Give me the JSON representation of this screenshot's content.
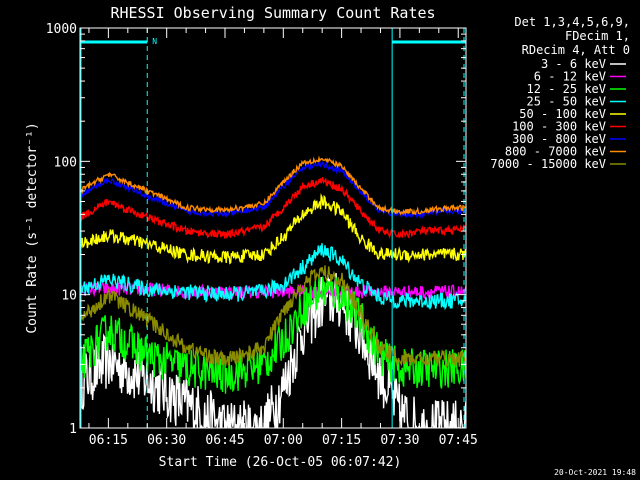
{
  "chart_data": {
    "type": "line",
    "title": "RHESSI Observing Summary Count Rates",
    "xlabel": "Start Time (26-Oct-05 06:07:42)",
    "ylabel": "Count Rate (s⁻¹ detector⁻¹)",
    "y_scale": "log",
    "ylim": [
      1,
      1000
    ],
    "xlim": [
      "06:07:42",
      "07:47:00"
    ],
    "x_ticks": [
      "06:15",
      "06:30",
      "06:45",
      "07:00",
      "07:15",
      "07:30",
      "07:45"
    ],
    "y_ticks": [
      "1",
      "10",
      "100",
      "1000"
    ],
    "legend_placement": "right",
    "legend_header": [
      "Det 1,3,4,5,6,9,",
      "FDecim 1,",
      "RDecim 4, Att 0"
    ],
    "timestamp": "20-Oct-2021 19:48",
    "night_marker": "N",
    "night_intervals": [
      [
        "06:07:42",
        "06:25:00"
      ],
      [
        "07:28:00",
        "07:47:00"
      ]
    ],
    "x_min": [
      "06:07:42",
      "06:15",
      "06:25",
      "06:35",
      "06:45",
      "06:55",
      "07:00",
      "07:05",
      "07:10",
      "07:15",
      "07:20",
      "07:25",
      "07:30",
      "07:35",
      "07:40",
      "07:47"
    ],
    "series": [
      {
        "name": "3 - 6 keV",
        "color": "#ffffff",
        "values": [
          2.2,
          3.2,
          2.3,
          1.5,
          1.0,
          1.0,
          2.0,
          5.5,
          9.0,
          9.0,
          5.0,
          2.5,
          1.3,
          1.0,
          1.0,
          1.0
        ]
      },
      {
        "name": "6 - 12 keV",
        "color": "#ff00ff",
        "values": [
          11,
          11,
          11,
          10.5,
          10.5,
          10.5,
          10.5,
          10.5,
          10.5,
          10.5,
          10.5,
          10.5,
          10.5,
          10.5,
          10.5,
          10.5
        ]
      },
      {
        "name": "12 - 25 keV",
        "color": "#00ff00",
        "values": [
          3.0,
          5.5,
          3.5,
          2.8,
          2.5,
          3.0,
          4.5,
          8.0,
          11,
          10,
          6.5,
          3.5,
          2.8,
          2.8,
          2.8,
          2.8
        ]
      },
      {
        "name": "25 - 50 keV",
        "color": "#00ffff",
        "values": [
          11,
          13,
          11,
          10.5,
          10,
          10.5,
          12,
          16,
          22,
          18,
          12,
          9.5,
          9,
          9,
          9,
          9
        ]
      },
      {
        "name": "50 - 100 keV",
        "color": "#ffff00",
        "values": [
          24,
          28,
          24,
          20,
          19,
          20,
          27,
          40,
          50,
          42,
          26,
          20,
          20,
          20,
          20,
          20
        ]
      },
      {
        "name": "100 - 300 keV",
        "color": "#ff0000",
        "values": [
          38,
          50,
          38,
          30,
          28,
          32,
          45,
          65,
          72,
          62,
          42,
          30,
          28,
          30,
          30,
          31
        ]
      },
      {
        "name": "300 - 800 keV",
        "color": "#0000ff",
        "values": [
          55,
          73,
          55,
          42,
          40,
          45,
          65,
          90,
          95,
          85,
          58,
          42,
          40,
          40,
          42,
          42
        ]
      },
      {
        "name": "800 - 7000 keV",
        "color": "#ff8c00",
        "values": [
          60,
          80,
          60,
          45,
          43,
          48,
          70,
          98,
          104,
          92,
          62,
          44,
          42,
          42,
          44,
          45
        ]
      },
      {
        "name": "7000 - 15000 keV",
        "color": "#8b8b00",
        "values": [
          6.5,
          10,
          6.5,
          4,
          3.2,
          4,
          7.5,
          12,
          15,
          13,
          7,
          4,
          3.3,
          3.3,
          3.3,
          3.3
        ]
      }
    ]
  }
}
